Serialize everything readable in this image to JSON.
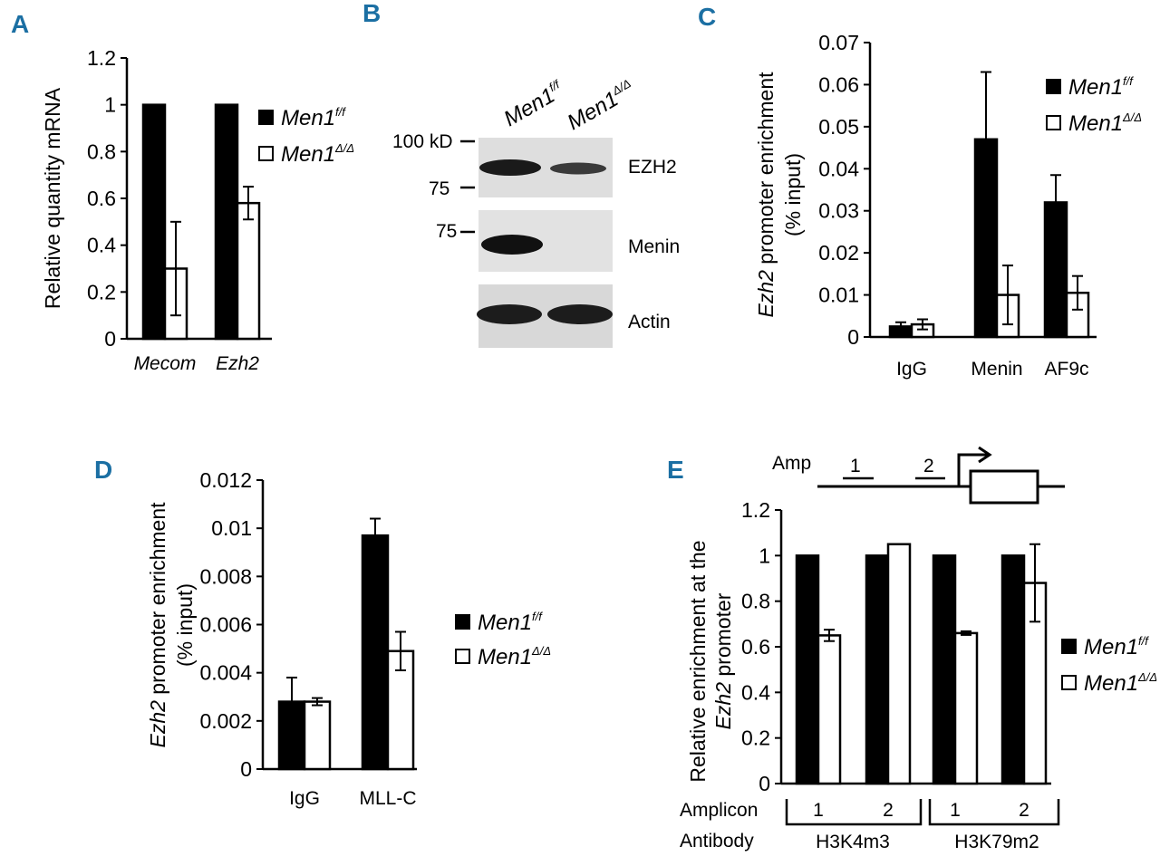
{
  "panel_letters": [
    "A",
    "B",
    "C",
    "D",
    "E"
  ],
  "legend": {
    "series1_base": "Men1",
    "series1_sup": "f/f",
    "series2_base": "Men1",
    "series2_sup": "Δ/Δ"
  },
  "colors": {
    "series1": "#000000",
    "series2": "#ffffff",
    "panel_letter": "#1b6fa3"
  },
  "chart_data": [
    {
      "panel": "A",
      "type": "bar",
      "ylabel": "Relative quantity mRNA",
      "ylim": [
        0,
        1.2
      ],
      "yticks": [
        "0",
        "0.2",
        "0.4",
        "0.6",
        "0.8",
        "1",
        "1.2"
      ],
      "categories": [
        "Mecom",
        "Ezh2"
      ],
      "categories_italic": true,
      "series": [
        {
          "name": "Men1 f/f",
          "values": [
            1.0,
            1.0
          ],
          "errors": [
            0,
            0
          ]
        },
        {
          "name": "Men1 Δ/Δ",
          "values": [
            0.3,
            0.58
          ],
          "errors": [
            0.2,
            0.07
          ]
        }
      ]
    },
    {
      "panel": "C",
      "type": "bar",
      "ylabel_italic": "Ezh2",
      "ylabel_rest": " promoter enrichment",
      "ylabel2": "(% input)",
      "ylim": [
        0,
        0.07
      ],
      "yticks": [
        "0",
        "0.01",
        "0.02",
        "0.03",
        "0.04",
        "0.05",
        "0.06",
        "0.07"
      ],
      "categories": [
        "IgG",
        "Menin",
        "AF9c"
      ],
      "series": [
        {
          "name": "Men1 f/f",
          "values": [
            0.0025,
            0.047,
            0.032
          ],
          "errors": [
            0.001,
            0.016,
            0.0065
          ]
        },
        {
          "name": "Men1 Δ/Δ",
          "values": [
            0.003,
            0.01,
            0.0105
          ],
          "errors": [
            0.0012,
            0.007,
            0.004
          ]
        }
      ]
    },
    {
      "panel": "D",
      "type": "bar",
      "ylabel_italic": "Ezh2",
      "ylabel_rest": " promoter enrichment",
      "ylabel2": "(% input)",
      "ylim": [
        0,
        0.012
      ],
      "yticks": [
        "0",
        "0.002",
        "0.004",
        "0.006",
        "0.008",
        "0.01",
        "0.012"
      ],
      "categories": [
        "IgG",
        "MLL-C"
      ],
      "series": [
        {
          "name": "Men1 f/f",
          "values": [
            0.0028,
            0.0097
          ],
          "errors": [
            0.001,
            0.0007
          ]
        },
        {
          "name": "Men1 Δ/Δ",
          "values": [
            0.0028,
            0.0049
          ],
          "errors": [
            0.00015,
            0.0008
          ]
        }
      ]
    },
    {
      "panel": "E",
      "type": "bar",
      "ylabel": "Relative enrichment at the",
      "ylabel2_italic": "Ezh2",
      "ylabel2_rest": " promoter",
      "ylim": [
        0,
        1.2
      ],
      "yticks": [
        "0",
        "0.2",
        "0.4",
        "0.6",
        "0.8",
        "1",
        "1.2"
      ],
      "categories": [
        "1",
        "2",
        "1",
        "2"
      ],
      "row_label_amplicon": "Amplicon",
      "row_label_antibody": "Antibody",
      "antibody_groups": [
        "H3K4m3",
        "H3K79m2"
      ],
      "series": [
        {
          "name": "Men1 f/f",
          "values": [
            1.0,
            1.0,
            1.0,
            1.0
          ],
          "errors": [
            0,
            0,
            0,
            0
          ]
        },
        {
          "name": "Men1 Δ/Δ",
          "values": [
            0.65,
            1.05,
            0.66,
            0.88
          ],
          "errors": [
            0.025,
            0,
            0.008,
            0.17
          ]
        }
      ]
    }
  ],
  "gene_diagram": {
    "label": "Amp",
    "amplicons": [
      "1",
      "2"
    ]
  },
  "blot": {
    "lanes": [
      "Men1",
      "Men1"
    ],
    "lane_sups": [
      "f/f",
      "Δ/Δ"
    ],
    "markers": [
      "100 kD",
      "75",
      "75"
    ],
    "bands": [
      "EZH2",
      "Menin",
      "Actin"
    ]
  }
}
